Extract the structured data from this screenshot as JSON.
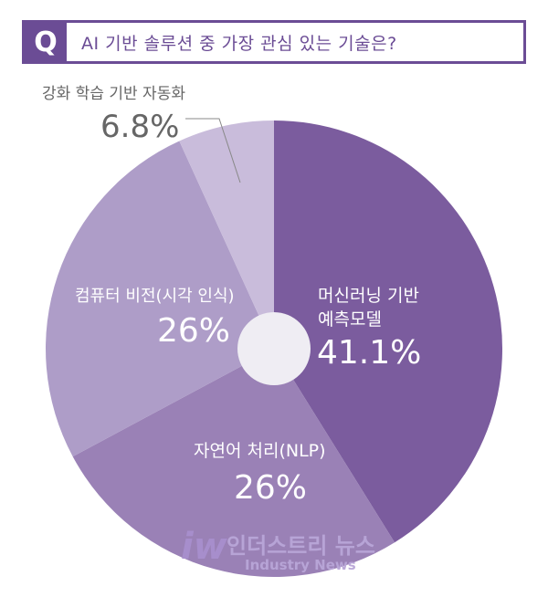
{
  "question": {
    "badge": "Q",
    "text": "AI 기반 솔루션 중 가장 관심 있는 기술은?"
  },
  "colors": {
    "accent": "#6b4c95",
    "hole": "#efedf3"
  },
  "chart_data": {
    "type": "pie",
    "title": "AI 기반 솔루션 중 가장 관심 있는 기술은?",
    "slices": [
      {
        "label": "머신러닝 기반 예측모델",
        "label_lines": [
          "머신러닝 기반",
          "예측모델"
        ],
        "value": 41.1,
        "value_text": "41.1%",
        "color": "#7b5c9e"
      },
      {
        "label": "자연어 처리(NLP)",
        "label_lines": [
          "자연어 처리(NLP)"
        ],
        "value": 26,
        "value_text": "26%",
        "color": "#9a81b6"
      },
      {
        "label": "컴퓨터 비전(시각 인식)",
        "label_lines": [
          "컴퓨터 비전(시각 인식)"
        ],
        "value": 26,
        "value_text": "26%",
        "color": "#ae9dc8"
      },
      {
        "label": "강화 학습 기반 자동화",
        "label_lines": [
          "강화 학습 기반 자동화"
        ],
        "value": 6.8,
        "value_text": "6.8%",
        "color": "#c9bcdb"
      }
    ]
  },
  "watermark": {
    "logo": "iw",
    "name_ko": "인더스트리 뉴스",
    "name_en": "Industry News"
  }
}
